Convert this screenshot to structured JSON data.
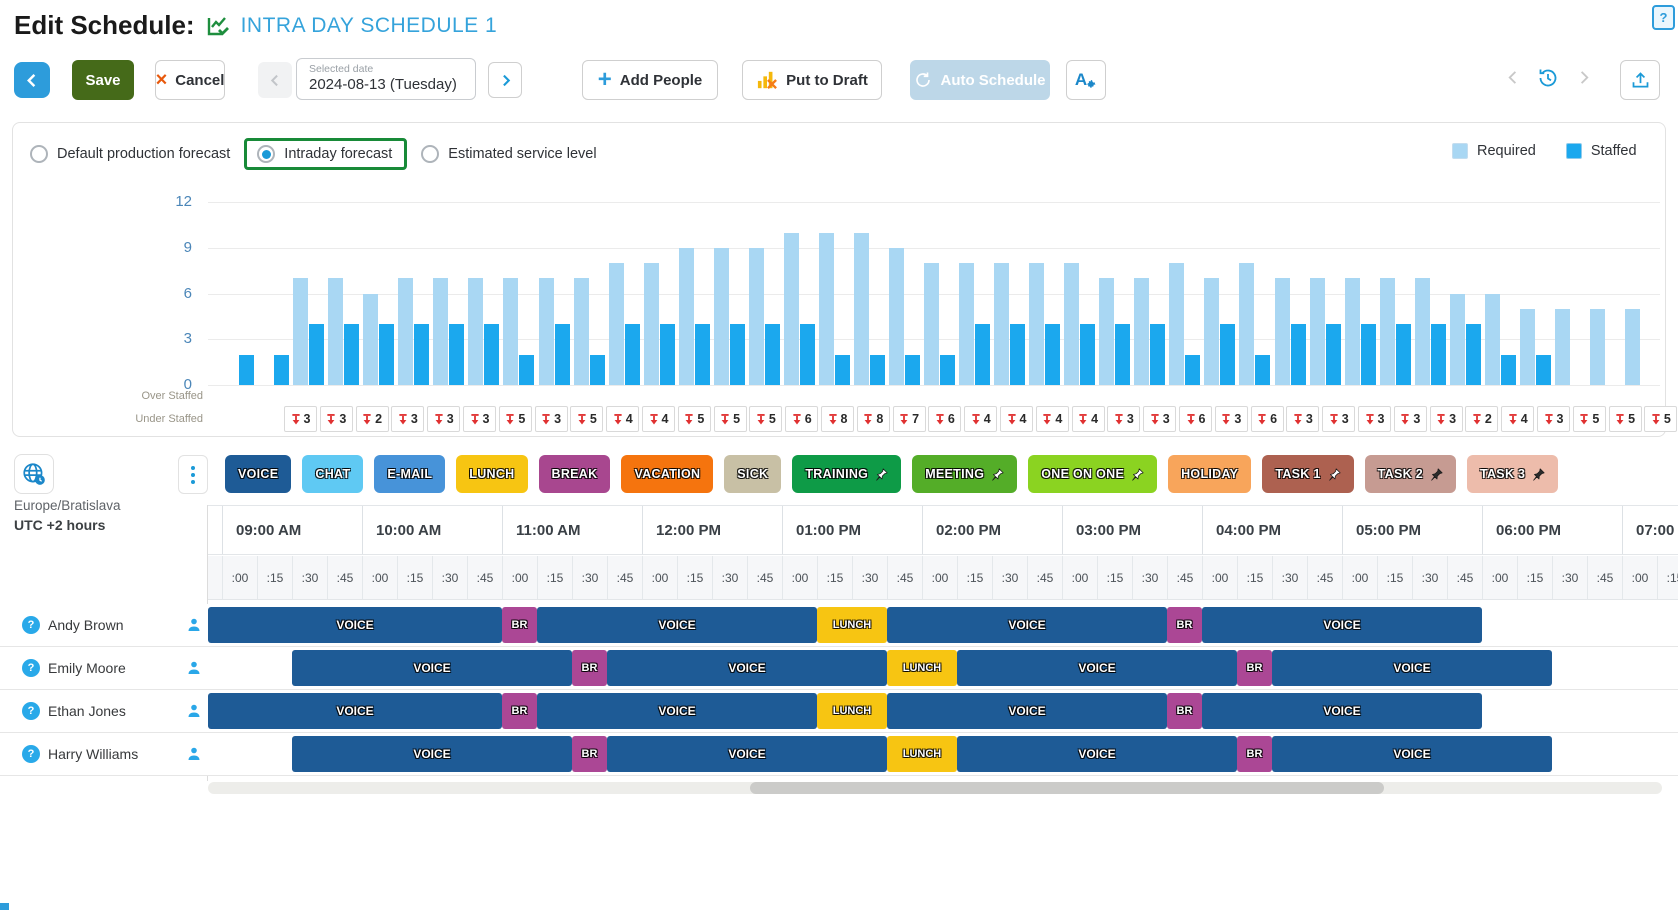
{
  "title": {
    "prefix": "Edit Schedule:",
    "schedule_name": "INTRA DAY SCHEDULE 1"
  },
  "toolbar": {
    "save": "Save",
    "cancel": "Cancel",
    "selected_date_label": "Selected date",
    "selected_date_value": "2024-08-13 (Tuesday)",
    "add_people": "Add People",
    "put_to_draft": "Put to Draft",
    "auto_schedule": "Auto Schedule"
  },
  "icons": {
    "cancel_x": "×",
    "add_plus": "+",
    "help": "?"
  },
  "forecast_options": [
    {
      "label": "Default production forecast",
      "selected": false
    },
    {
      "label": "Intraday forecast",
      "selected": true,
      "highlighted": true
    },
    {
      "label": "Estimated service level",
      "selected": false
    }
  ],
  "legend": {
    "required": "Required",
    "staffed": "Staffed",
    "required_color": "#A9D7F3",
    "staffed_color": "#1BA8EE"
  },
  "chart_data": {
    "type": "bar",
    "x_start": "09:00",
    "x_interval_minutes": 15,
    "slot_count": 41,
    "y_ticks": [
      0,
      3,
      6,
      9,
      12
    ],
    "series": [
      {
        "name": "Required",
        "color": "#A9D7F3",
        "values": [
          0,
          0,
          7,
          7,
          6,
          7,
          7,
          7,
          7,
          7,
          7,
          8,
          8,
          9,
          9,
          9,
          10,
          10,
          10,
          9,
          8,
          8,
          8,
          8,
          8,
          7,
          7,
          8,
          7,
          8,
          7,
          7,
          7,
          7,
          7,
          6,
          6,
          5,
          5,
          5,
          5
        ]
      },
      {
        "name": "Staffed",
        "color": "#1BA8EE",
        "values": [
          2,
          2,
          4,
          4,
          4,
          4,
          4,
          4,
          2,
          4,
          2,
          4,
          4,
          4,
          4,
          4,
          4,
          2,
          2,
          2,
          2,
          4,
          4,
          4,
          4,
          4,
          4,
          2,
          4,
          2,
          4,
          4,
          4,
          4,
          4,
          4,
          2,
          2,
          0,
          0,
          0
        ]
      }
    ],
    "over_staffed_label": "Over Staffed",
    "under_staffed_label": "Under Staffed",
    "understaffed": [
      3,
      3,
      2,
      3,
      3,
      3,
      5,
      3,
      5,
      4,
      4,
      5,
      5,
      5,
      6,
      8,
      8,
      7,
      6,
      4,
      4,
      4,
      4,
      3,
      3,
      6,
      3,
      6,
      3,
      3,
      3,
      3,
      3,
      2,
      4,
      3,
      5,
      5,
      5
    ]
  },
  "timezone": {
    "region": "Europe/Bratislava",
    "offset": "UTC +2 hours"
  },
  "activities": [
    {
      "label": "VOICE",
      "color": "#1E5B96"
    },
    {
      "label": "CHAT",
      "color": "#5FC9F3"
    },
    {
      "label": "E-MAIL",
      "color": "#4793D9"
    },
    {
      "label": "LUNCH",
      "color": "#F7C512"
    },
    {
      "label": "BREAK",
      "color": "#A8478F"
    },
    {
      "label": "VACATION",
      "color": "#F5740E"
    },
    {
      "label": "SICK",
      "color": "#C8C0A5"
    },
    {
      "label": "TRAINING",
      "color": "#0E9B47",
      "pin": "light"
    },
    {
      "label": "MEETING",
      "color": "#54AD28",
      "pin": "light"
    },
    {
      "label": "ONE ON ONE",
      "color": "#8BD321",
      "pin": "light"
    },
    {
      "label": "HOLIDAY",
      "color": "#F8A55B"
    },
    {
      "label": "TASK 1",
      "color": "#AD6150",
      "pin": "light"
    },
    {
      "label": "TASK 2",
      "color": "#C69B92",
      "pin": "dark"
    },
    {
      "label": "TASK 3",
      "color": "#EDBCAB",
      "pin": "dark"
    }
  ],
  "timeline": {
    "hours": [
      "09:00 AM",
      "10:00 AM",
      "11:00 AM",
      "12:00 PM",
      "01:00 PM",
      "02:00 PM",
      "03:00 PM",
      "04:00 PM",
      "05:00 PM",
      "06:00 PM",
      "07:00 PM"
    ],
    "ticks": [
      ":00",
      ":15",
      ":30",
      ":45"
    ]
  },
  "block_colors": {
    "VOICE": "#1E5B96",
    "BR": "#AB4795",
    "LUNCH": "#F7C512"
  },
  "employees": [
    {
      "name": "Andy Brown",
      "blocks": [
        {
          "type": "VOICE",
          "start": "09:00",
          "end": "11:00"
        },
        {
          "type": "BR",
          "start": "11:00",
          "end": "11:15"
        },
        {
          "type": "VOICE",
          "start": "11:15",
          "end": "13:15"
        },
        {
          "type": "LUNCH",
          "start": "13:15",
          "end": "13:45"
        },
        {
          "type": "VOICE",
          "start": "13:45",
          "end": "15:45"
        },
        {
          "type": "BR",
          "start": "15:45",
          "end": "16:00"
        },
        {
          "type": "VOICE",
          "start": "16:00",
          "end": "18:00"
        }
      ]
    },
    {
      "name": "Emily Moore",
      "blocks": [
        {
          "type": "VOICE",
          "start": "09:30",
          "end": "11:30"
        },
        {
          "type": "BR",
          "start": "11:30",
          "end": "11:45"
        },
        {
          "type": "VOICE",
          "start": "11:45",
          "end": "13:45"
        },
        {
          "type": "LUNCH",
          "start": "13:45",
          "end": "14:15"
        },
        {
          "type": "VOICE",
          "start": "14:15",
          "end": "16:15"
        },
        {
          "type": "BR",
          "start": "16:15",
          "end": "16:30"
        },
        {
          "type": "VOICE",
          "start": "16:30",
          "end": "18:30"
        }
      ]
    },
    {
      "name": "Ethan Jones",
      "blocks": [
        {
          "type": "VOICE",
          "start": "09:00",
          "end": "11:00"
        },
        {
          "type": "BR",
          "start": "11:00",
          "end": "11:15"
        },
        {
          "type": "VOICE",
          "start": "11:15",
          "end": "13:15"
        },
        {
          "type": "LUNCH",
          "start": "13:15",
          "end": "13:45"
        },
        {
          "type": "VOICE",
          "start": "13:45",
          "end": "15:45"
        },
        {
          "type": "BR",
          "start": "15:45",
          "end": "16:00"
        },
        {
          "type": "VOICE",
          "start": "16:00",
          "end": "18:00"
        }
      ]
    },
    {
      "name": "Harry Williams",
      "blocks": [
        {
          "type": "VOICE",
          "start": "09:30",
          "end": "11:30"
        },
        {
          "type": "BR",
          "start": "11:30",
          "end": "11:45"
        },
        {
          "type": "VOICE",
          "start": "11:45",
          "end": "13:45"
        },
        {
          "type": "LUNCH",
          "start": "13:45",
          "end": "14:15"
        },
        {
          "type": "VOICE",
          "start": "14:15",
          "end": "16:15"
        },
        {
          "type": "BR",
          "start": "16:15",
          "end": "16:30"
        },
        {
          "type": "VOICE",
          "start": "16:30",
          "end": "18:30"
        }
      ]
    }
  ]
}
